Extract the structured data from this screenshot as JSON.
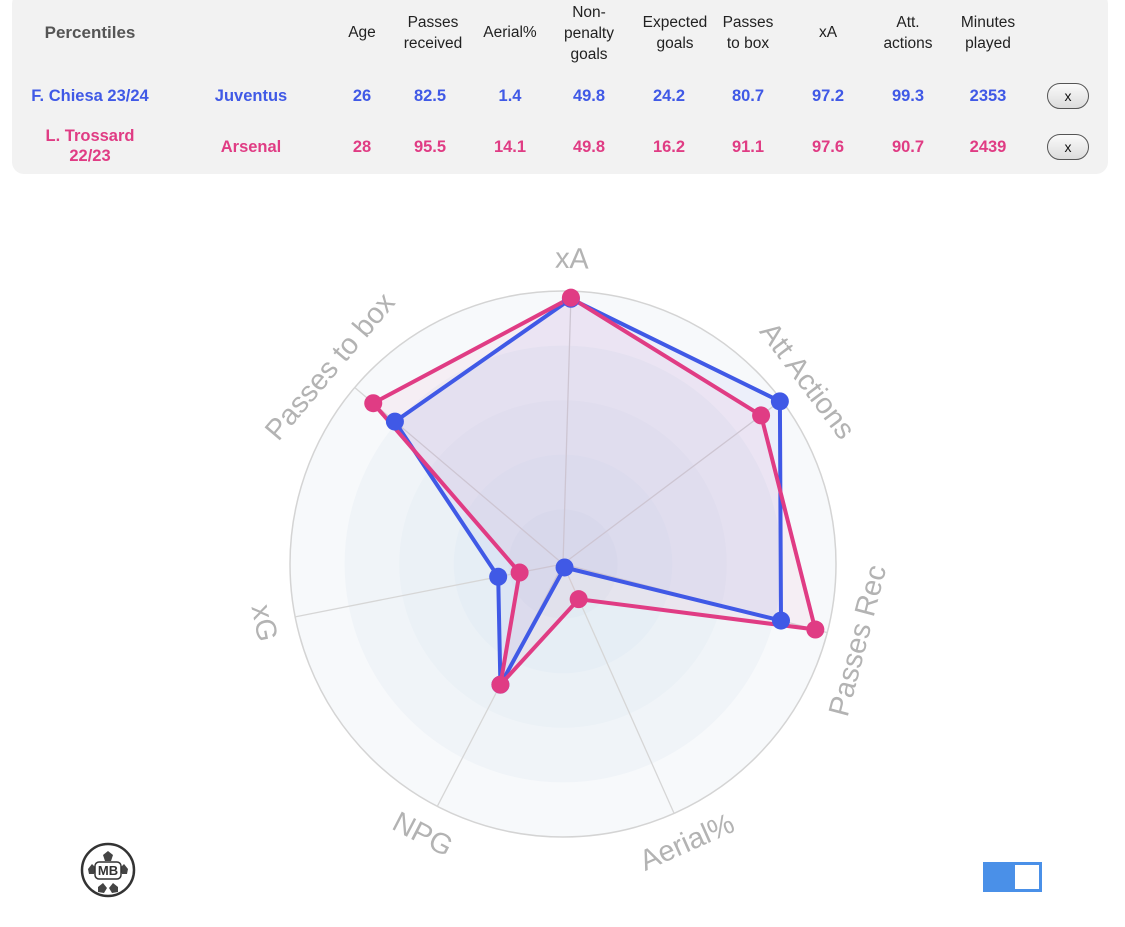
{
  "table": {
    "corner_label": "Percentiles",
    "headers": {
      "age": "Age",
      "passes_received": "Passes\nreceived",
      "aerial": "Aerial%",
      "npg": "Non-\npenalty\ngoals",
      "xg": "Expected\ngoals",
      "passes_box": "Passes\nto box",
      "xa": "xA",
      "att_actions": "Att.\nactions",
      "minutes": "Minutes\nplayed"
    },
    "rows": [
      {
        "player": "F. Chiesa 23/24",
        "team": "Juventus",
        "age": "26",
        "passes_received": "82.5",
        "aerial": "1.4",
        "npg": "49.8",
        "xg": "24.2",
        "passes_box": "80.7",
        "xa": "97.2",
        "att_actions": "99.3",
        "minutes": "2353",
        "remove_label": "x",
        "color": "#4059e6"
      },
      {
        "player": "L. Trossard\n22/23",
        "team": "Arsenal",
        "age": "28",
        "passes_received": "95.5",
        "aerial": "14.1",
        "npg": "49.8",
        "xg": "16.2",
        "passes_box": "91.1",
        "xa": "97.6",
        "att_actions": "90.7",
        "minutes": "2439",
        "remove_label": "x",
        "color": "#e03c84"
      }
    ]
  },
  "chart_data": {
    "type": "radar",
    "axes": [
      "xA",
      "Att Actions",
      "Passes Rec",
      "Aerial%",
      "NPG",
      "xG",
      "Passes to box"
    ],
    "range": [
      0,
      100
    ],
    "rings": 5,
    "series": [
      {
        "name": "F. Chiesa 23/24",
        "color": "#4059e6",
        "values": [
          97.2,
          99.3,
          82.5,
          1.4,
          49.8,
          24.2,
          80.7
        ]
      },
      {
        "name": "L. Trossard 22/23",
        "color": "#e03c84",
        "values": [
          97.6,
          90.7,
          95.5,
          14.1,
          49.8,
          16.2,
          91.1
        ]
      }
    ]
  },
  "footer": {
    "logo_text": "MB",
    "logo_icon": "mb-ball-logo",
    "toggle_icon": "toggle-switch",
    "toggle_on": true
  }
}
